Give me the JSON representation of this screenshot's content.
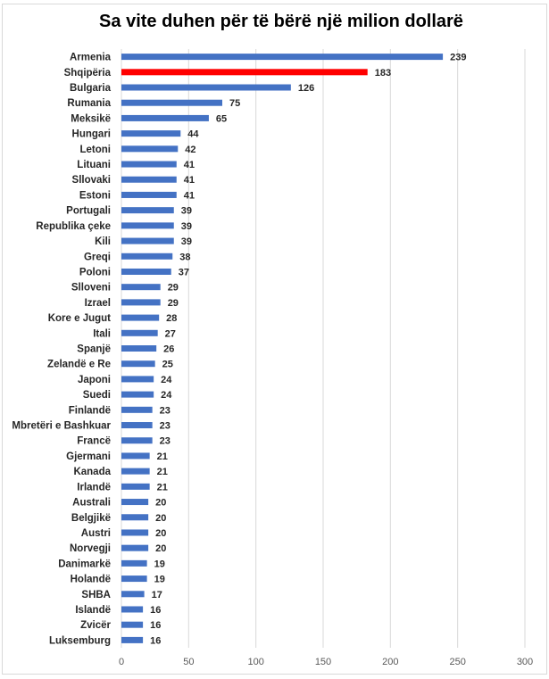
{
  "chart_data": {
    "type": "bar",
    "orientation": "horizontal",
    "title": "Sa vite duhen për të bërë një milion dollarë",
    "xlabel": "",
    "ylabel": "",
    "xlim": [
      0,
      300
    ],
    "xticks": [
      0,
      50,
      100,
      150,
      200,
      250,
      300
    ],
    "grid": true,
    "categories": [
      "Armenia",
      "Shqipëria",
      "Bulgaria",
      "Rumania",
      "Meksikë",
      "Hungari",
      "Letoni",
      "Lituani",
      "Sllovaki",
      "Estoni",
      "Portugali",
      "Republika çeke",
      "Kili",
      "Greqi",
      "Poloni",
      "Slloveni",
      "Izrael",
      "Kore e Jugut",
      "Itali",
      "Spanjë",
      "Zelandë e Re",
      "Japoni",
      "Suedi",
      "Finlandë",
      "Mbretëri e Bashkuar",
      "Francë",
      "Gjermani",
      "Kanada",
      "Irlandë",
      "Australi",
      "Belgjikë",
      "Austri",
      "Norvegji",
      "Danimarkë",
      "Holandë",
      "SHBA",
      "Islandë",
      "Zvicër",
      "Luksemburg"
    ],
    "values": [
      239,
      183,
      126,
      75,
      65,
      44,
      42,
      41,
      41,
      41,
      39,
      39,
      39,
      38,
      37,
      29,
      29,
      28,
      27,
      26,
      25,
      24,
      24,
      23,
      23,
      23,
      21,
      21,
      21,
      20,
      20,
      20,
      20,
      19,
      19,
      17,
      16,
      16,
      16
    ],
    "colors": {
      "default": "#4472c4",
      "highlight": "#ff0000",
      "highlight_category": "Shqipëria"
    }
  }
}
